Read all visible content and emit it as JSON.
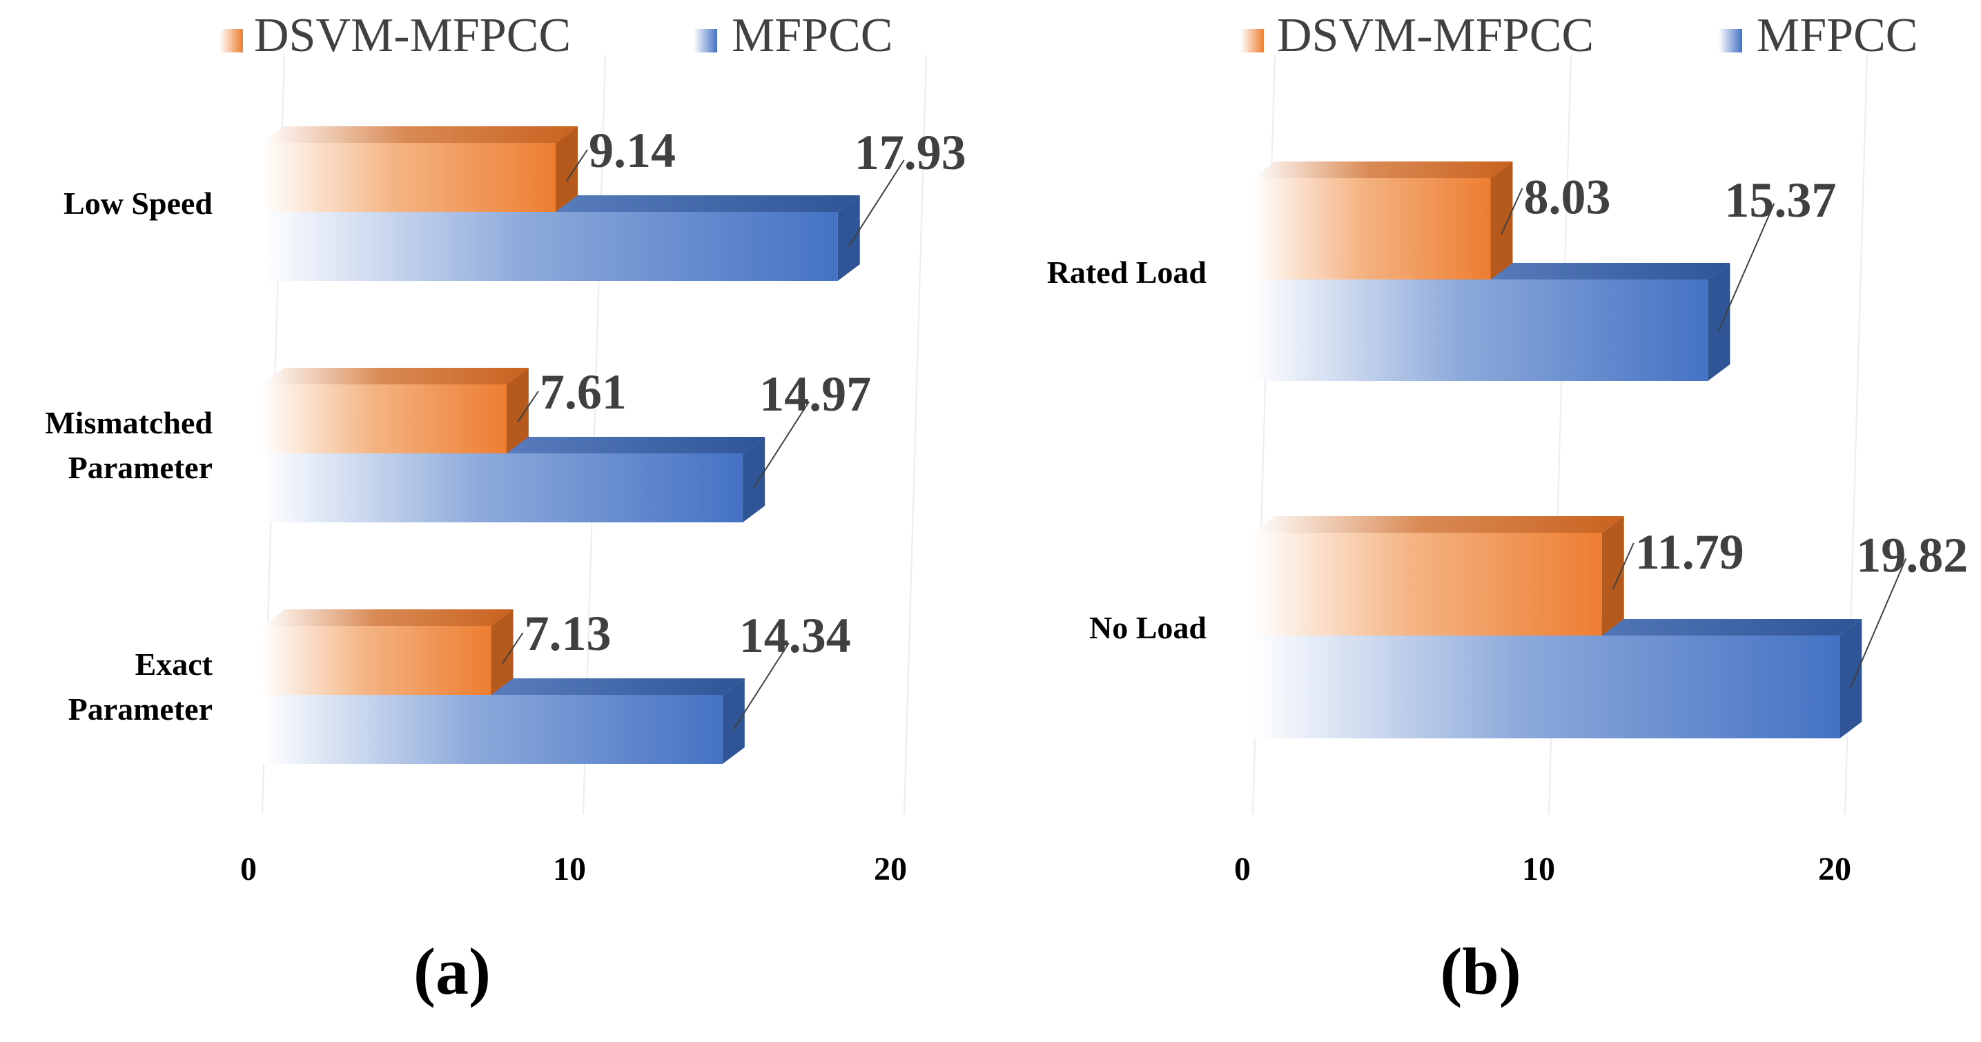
{
  "chart_data": [
    {
      "panel": "a",
      "type": "bar",
      "orientation": "horizontal",
      "style": "3d",
      "panel_label": "(a)",
      "categories": [
        "Low Speed",
        "Mismatched Parameter",
        "Exact Parameter"
      ],
      "series": [
        {
          "name": "DSVM-MFPCC",
          "values": [
            9.14,
            7.61,
            7.13
          ],
          "labels": [
            "9.14",
            "7.61",
            "7.13"
          ],
          "color": "#ED7D31"
        },
        {
          "name": "MFPCC",
          "values": [
            17.93,
            14.97,
            14.34
          ],
          "labels": [
            "17.93",
            "14.97",
            "14.34"
          ],
          "color": "#4472C4"
        }
      ],
      "x_ticks": [
        "0",
        "10",
        "20"
      ],
      "xlim": [
        0,
        20
      ],
      "legend": "top",
      "grid": true
    },
    {
      "panel": "b",
      "type": "bar",
      "orientation": "horizontal",
      "style": "3d",
      "panel_label": "(b)",
      "categories": [
        "Rated Load",
        "No Load"
      ],
      "series": [
        {
          "name": "DSVM-MFPCC",
          "values": [
            8.03,
            11.79
          ],
          "labels": [
            "8.03",
            "11.79"
          ],
          "color": "#ED7D31"
        },
        {
          "name": "MFPCC",
          "values": [
            15.37,
            19.82
          ],
          "labels": [
            "15.37",
            "19.82"
          ],
          "color": "#4472C4"
        }
      ],
      "x_ticks": [
        "0",
        "10",
        "20"
      ],
      "xlim": [
        0,
        20
      ],
      "legend": "top",
      "grid": true
    }
  ]
}
